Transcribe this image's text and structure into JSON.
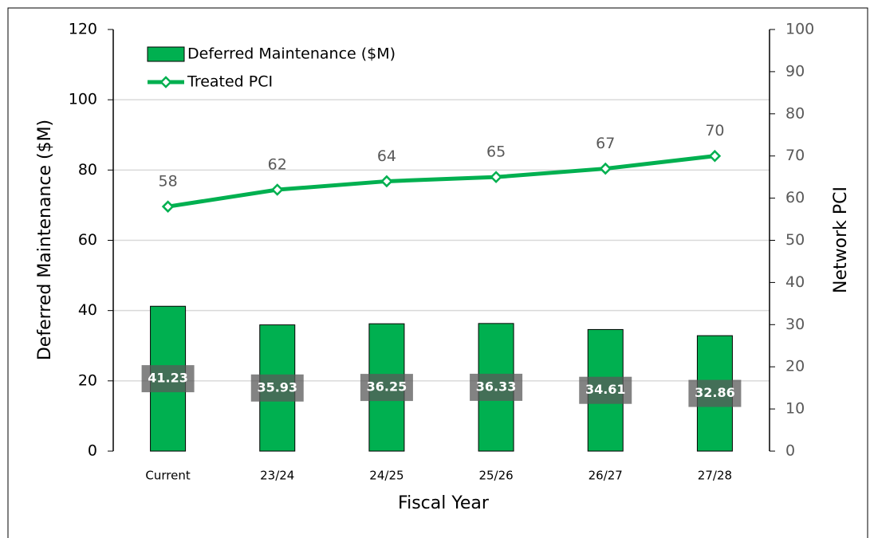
{
  "chart_data": {
    "type": "bar",
    "x_label": "Fiscal Year",
    "y_label": "Deferred Maintenance ($M)",
    "y2_label": "Network PCI",
    "categories": [
      "Current",
      "23/24",
      "24/25",
      "25/26",
      "26/27",
      "27/28"
    ],
    "series": [
      {
        "name": "Deferred Maintenance ($M)",
        "type": "bar",
        "color": "#00b050",
        "values": [
          41.23,
          35.93,
          36.25,
          36.33,
          34.61,
          32.86
        ]
      },
      {
        "name": "Treated PCI",
        "type": "line",
        "axis": "y2",
        "color": "#00b050",
        "values": [
          58,
          62,
          64,
          65,
          67,
          70
        ]
      }
    ],
    "ylim": [
      0,
      120
    ],
    "yticks": [
      0,
      20,
      40,
      60,
      80,
      100,
      120
    ],
    "y2lim": [
      0,
      100
    ],
    "y2ticks": [
      0,
      10,
      20,
      30,
      40,
      50,
      60,
      70,
      80,
      90,
      100
    ],
    "grid": true,
    "legend": "upper left"
  }
}
